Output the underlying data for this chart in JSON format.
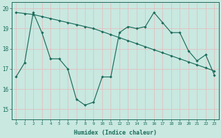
{
  "xlabel": "Humidex (Indice chaleur)",
  "background_color": "#c8e8e0",
  "line_color": "#1a6b5a",
  "grid_color": "#b0d8d0",
  "xlim": [
    -0.5,
    23.5
  ],
  "ylim": [
    14.5,
    20.3
  ],
  "xtick_labels": [
    "0",
    "1",
    "2",
    "3",
    "4",
    "5",
    "6",
    "7",
    "8",
    "9",
    "10",
    "11",
    "12",
    "13",
    "14",
    "15",
    "16",
    "17",
    "18",
    "19",
    "20",
    "21",
    "22",
    "23"
  ],
  "xtick_vals": [
    0,
    1,
    2,
    3,
    4,
    5,
    6,
    7,
    8,
    9,
    10,
    11,
    12,
    13,
    14,
    15,
    16,
    17,
    18,
    19,
    20,
    21,
    22,
    23
  ],
  "ytick_vals": [
    15,
    16,
    17,
    18,
    19,
    20
  ],
  "line1_x": [
    0,
    1,
    2,
    3,
    4,
    5,
    6,
    7,
    8,
    9,
    10,
    11,
    12,
    13,
    14,
    15,
    16,
    17,
    18,
    19,
    20,
    21,
    22,
    23
  ],
  "line1_y": [
    16.6,
    17.3,
    19.8,
    18.8,
    17.5,
    17.5,
    17.0,
    15.5,
    15.2,
    15.35,
    16.6,
    16.6,
    18.8,
    19.1,
    19.0,
    19.1,
    19.8,
    19.3,
    18.8,
    18.8,
    17.9,
    17.4,
    17.7,
    16.7
  ],
  "line2_x": [
    0,
    1,
    2,
    3,
    4,
    5,
    6,
    7,
    8,
    9,
    10,
    11,
    12,
    13,
    14,
    15,
    16,
    17,
    18,
    19,
    20,
    21,
    22,
    23
  ],
  "line2_y": [
    19.8,
    19.75,
    19.7,
    19.6,
    19.5,
    19.4,
    19.3,
    19.2,
    19.1,
    19.0,
    18.85,
    18.7,
    18.55,
    18.4,
    18.25,
    18.1,
    17.95,
    17.8,
    17.65,
    17.5,
    17.35,
    17.2,
    17.05,
    16.9
  ]
}
